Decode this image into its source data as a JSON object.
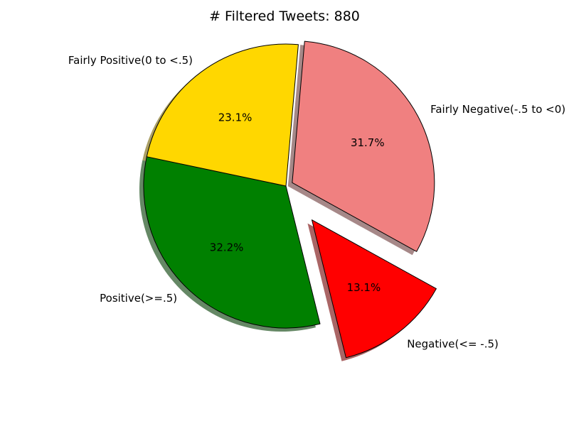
{
  "chart_data": {
    "type": "pie",
    "title": "# Filtered Tweets: 880",
    "slices": [
      {
        "label": "Fairly Negative(-.5 to <0)",
        "value": 31.7,
        "pct_label": "31.7%",
        "color": "#f08080",
        "explode": 0.05
      },
      {
        "label": "Negative(<= -.5)",
        "value": 13.1,
        "pct_label": "13.1%",
        "color": "#ff0000",
        "explode": 0.3
      },
      {
        "label": "Positive(>=.5)",
        "value": 32.2,
        "pct_label": "32.2%",
        "color": "#008000",
        "explode": 0
      },
      {
        "label": "Fairly Positive(0 to <.5)",
        "value": 23.1,
        "pct_label": "23.1%",
        "color": "#ffd700",
        "explode": 0
      }
    ],
    "start_angle_deg": 85,
    "shadow": true,
    "legend": "none"
  }
}
